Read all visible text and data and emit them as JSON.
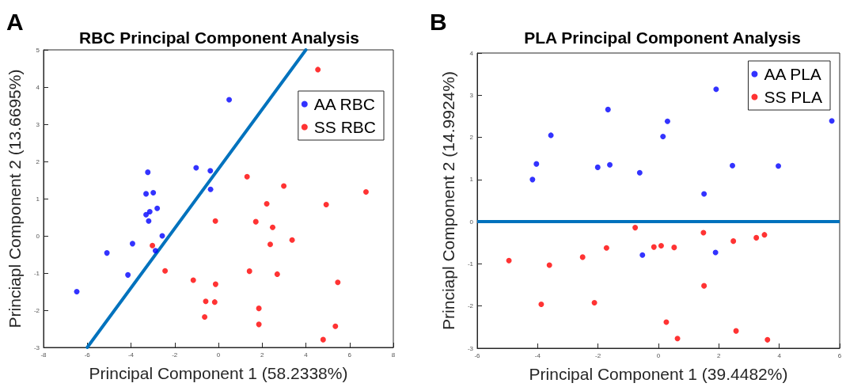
{
  "chart_data": [
    {
      "type": "scatter",
      "title": "RBC Principal Component Analysis",
      "xlabel": "Principal Component 1 (58.2338%)",
      "ylabel": "Princiapl Component 2 (13.6695%)",
      "annotations": [
        "A"
      ],
      "xlim": [
        -8,
        8
      ],
      "xticks": [
        -8,
        -6,
        -4,
        -2,
        0,
        2,
        4,
        6,
        8
      ],
      "ylim": [
        -3,
        5
      ],
      "yticks": [
        -3,
        -2,
        -1,
        0,
        1,
        2,
        3,
        4,
        5
      ],
      "grid": false,
      "legend": "top right",
      "marker": "circle",
      "series": [
        {
          "name": "AA RBC",
          "color": "#0000ff",
          "x": [
            -3.23,
            -3.31,
            -2.98,
            -1.02,
            -0.37,
            -0.36,
            0.49,
            -6.48,
            -3.31,
            -3.14,
            -2.8,
            -3.19,
            -2.57,
            -3.93,
            -5.1,
            -2.88,
            -4.14
          ],
          "values": [
            1.71,
            1.13,
            1.16,
            1.83,
            1.75,
            1.25,
            3.66,
            -1.5,
            0.57,
            0.65,
            0.74,
            0.4,
            0.0,
            -0.21,
            -0.46,
            -0.4,
            -1.05
          ]
        },
        {
          "name": "SS RBC",
          "color": "#ff0000",
          "x": [
            4.55,
            1.31,
            2.99,
            6.75,
            2.21,
            4.93,
            -0.14,
            1.71,
            2.48,
            3.37,
            2.37,
            -3.02,
            -2.44,
            1.42,
            2.69,
            -1.15,
            -0.13,
            5.46,
            -0.58,
            -0.17,
            1.85,
            -0.63,
            1.85,
            5.35,
            4.79
          ],
          "values": [
            4.47,
            1.59,
            1.34,
            1.18,
            0.86,
            0.84,
            0.4,
            0.38,
            0.23,
            -0.11,
            -0.23,
            -0.26,
            -0.94,
            -0.95,
            -1.03,
            -1.19,
            -1.3,
            -1.25,
            -1.76,
            -1.78,
            -1.95,
            -2.18,
            -2.38,
            -2.43,
            -2.79
          ]
        },
        {
          "type": "line",
          "color": "#0072bd",
          "marker": "none",
          "x": [
            -6,
            4
          ],
          "values": [
            -3,
            5
          ]
        }
      ]
    },
    {
      "type": "scatter",
      "title": "PLA Principal Component Analysis",
      "xlabel": "Principal Component 1 (39.4482%)",
      "ylabel": "Princiapl Component 2 (14.9924%)",
      "annotations": [
        "B"
      ],
      "xlim": [
        -6,
        6
      ],
      "xticks": [
        -6,
        -4,
        -2,
        0,
        2,
        4,
        6
      ],
      "ylim": [
        -3,
        4
      ],
      "yticks": [
        -3,
        -2,
        -1,
        0,
        1,
        2,
        3,
        4
      ],
      "grid": false,
      "legend": "top right",
      "marker": "circle",
      "ref_lines": [
        {
          "axis": "y",
          "value": 0,
          "color": "#0072bd"
        }
      ],
      "series": [
        {
          "name": "AA PLA",
          "color": "#0000ff",
          "x": [
            -4.17,
            -4.04,
            -3.56,
            -2.01,
            -1.67,
            -1.61,
            -0.62,
            0.15,
            0.3,
            1.51,
            1.91,
            2.45,
            3.97,
            5.74,
            -0.53,
            1.89
          ],
          "values": [
            1.0,
            1.37,
            2.05,
            1.29,
            2.66,
            1.35,
            1.16,
            2.02,
            2.38,
            0.66,
            3.14,
            1.33,
            1.32,
            2.39,
            -0.79,
            -0.73
          ]
        },
        {
          "name": "SS PLA",
          "color": "#ff0000",
          "x": [
            -4.95,
            -3.61,
            -3.88,
            -2.51,
            -2.12,
            -1.72,
            -0.77,
            -0.15,
            0.09,
            0.52,
            0.26,
            0.63,
            1.49,
            1.51,
            2.48,
            2.57,
            3.24,
            3.51,
            3.61
          ],
          "values": [
            -0.92,
            -1.03,
            -1.96,
            -0.84,
            -1.92,
            -0.62,
            -0.14,
            -0.6,
            -0.57,
            -0.61,
            -2.38,
            -2.77,
            -0.26,
            -1.52,
            -0.46,
            -2.59,
            -0.38,
            -0.31,
            -2.8
          ]
        }
      ]
    }
  ]
}
